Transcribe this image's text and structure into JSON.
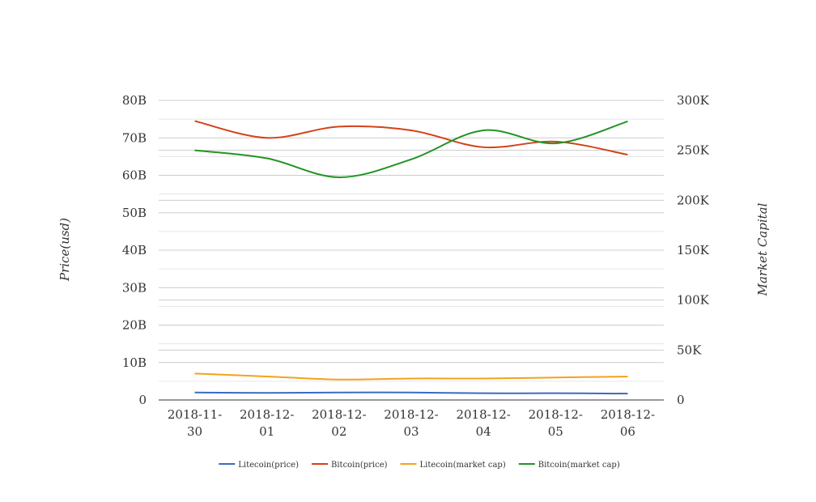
{
  "chart_data": {
    "type": "line",
    "title": "",
    "categories": [
      "2018-11-30",
      "2018-12-01",
      "2018-12-02",
      "2018-12-03",
      "2018-12-04",
      "2018-12-05",
      "2018-12-06"
    ],
    "category_lines": [
      [
        "2018-11-",
        "30"
      ],
      [
        "2018-12-",
        "01"
      ],
      [
        "2018-12-",
        "02"
      ],
      [
        "2018-12-",
        "03"
      ],
      [
        "2018-12-",
        "04"
      ],
      [
        "2018-12-",
        "05"
      ],
      [
        "2018-12-",
        "06"
      ]
    ],
    "y_left": {
      "label": "Price(usd)",
      "ylim": [
        0,
        80000000000
      ],
      "ticks": [
        0,
        10000000000,
        20000000000,
        30000000000,
        40000000000,
        50000000000,
        60000000000,
        70000000000,
        80000000000
      ],
      "tick_labels": [
        "0",
        "10B",
        "20B",
        "30B",
        "40B",
        "50B",
        "60B",
        "70B",
        "80B"
      ]
    },
    "y_right": {
      "label": "Market Capital",
      "ylim": [
        0,
        300000
      ],
      "ticks": [
        0,
        50000,
        100000,
        150000,
        200000,
        250000,
        300000
      ],
      "tick_labels": [
        "0",
        "50K",
        "100K",
        "150K",
        "200K",
        "250K",
        "300K"
      ]
    },
    "grid": true,
    "legend_position": "bottom",
    "series": [
      {
        "name": "Litecoin(price)",
        "axis": "left",
        "color": "#3b6bbf",
        "values": [
          2000000000,
          1900000000,
          2000000000,
          2000000000,
          1800000000,
          1800000000,
          1700000000
        ]
      },
      {
        "name": "Bitcoin(price)",
        "axis": "left",
        "color": "#d4421a",
        "values": [
          74500000000,
          70000000000,
          73000000000,
          72000000000,
          67500000000,
          69000000000,
          65500000000
        ]
      },
      {
        "name": "Litecoin(market cap)",
        "axis": "right",
        "color": "#f5a11c",
        "values": [
          26500,
          23500,
          20500,
          21500,
          21500,
          22500,
          23500
        ]
      },
      {
        "name": "Bitcoin(market cap)",
        "axis": "right",
        "color": "#239423",
        "values": [
          250000,
          242000,
          223000,
          241000,
          270000,
          257000,
          279000
        ]
      }
    ]
  }
}
